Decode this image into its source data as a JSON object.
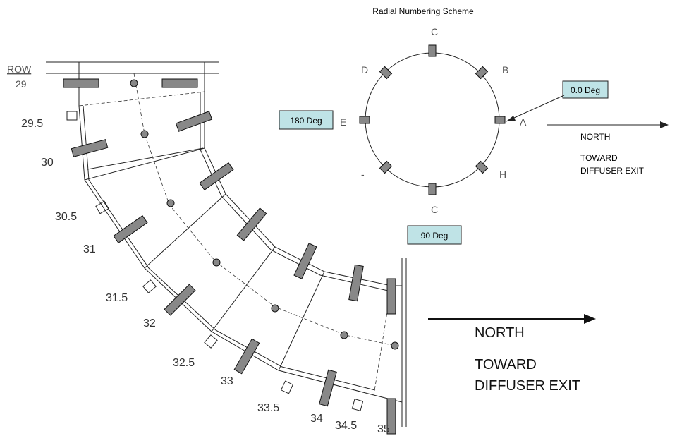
{
  "scheme": {
    "title": "Radial Numbering Scheme",
    "positions": {
      "top": "C",
      "upper_right": "B",
      "right": "A",
      "lower_right": "H",
      "bottom": "C",
      "lower_left": "-",
      "left": "E",
      "upper_left": "D"
    },
    "angles": {
      "right": "0.0 Deg",
      "left": "180 Deg",
      "bottom": "90 Deg"
    },
    "direction": {
      "label": "NORTH",
      "line1": "TOWARD",
      "line2": "DIFFUSER EXIT"
    }
  },
  "duct": {
    "row_header": "ROW",
    "rows": [
      "29",
      "29.5",
      "30",
      "30.5",
      "31",
      "31.5",
      "32",
      "32.5",
      "33",
      "33.5",
      "34",
      "34.5",
      "35"
    ],
    "direction": {
      "label": "NORTH",
      "line1": "TOWARD",
      "line2": "DIFFUSER EXIT"
    }
  }
}
